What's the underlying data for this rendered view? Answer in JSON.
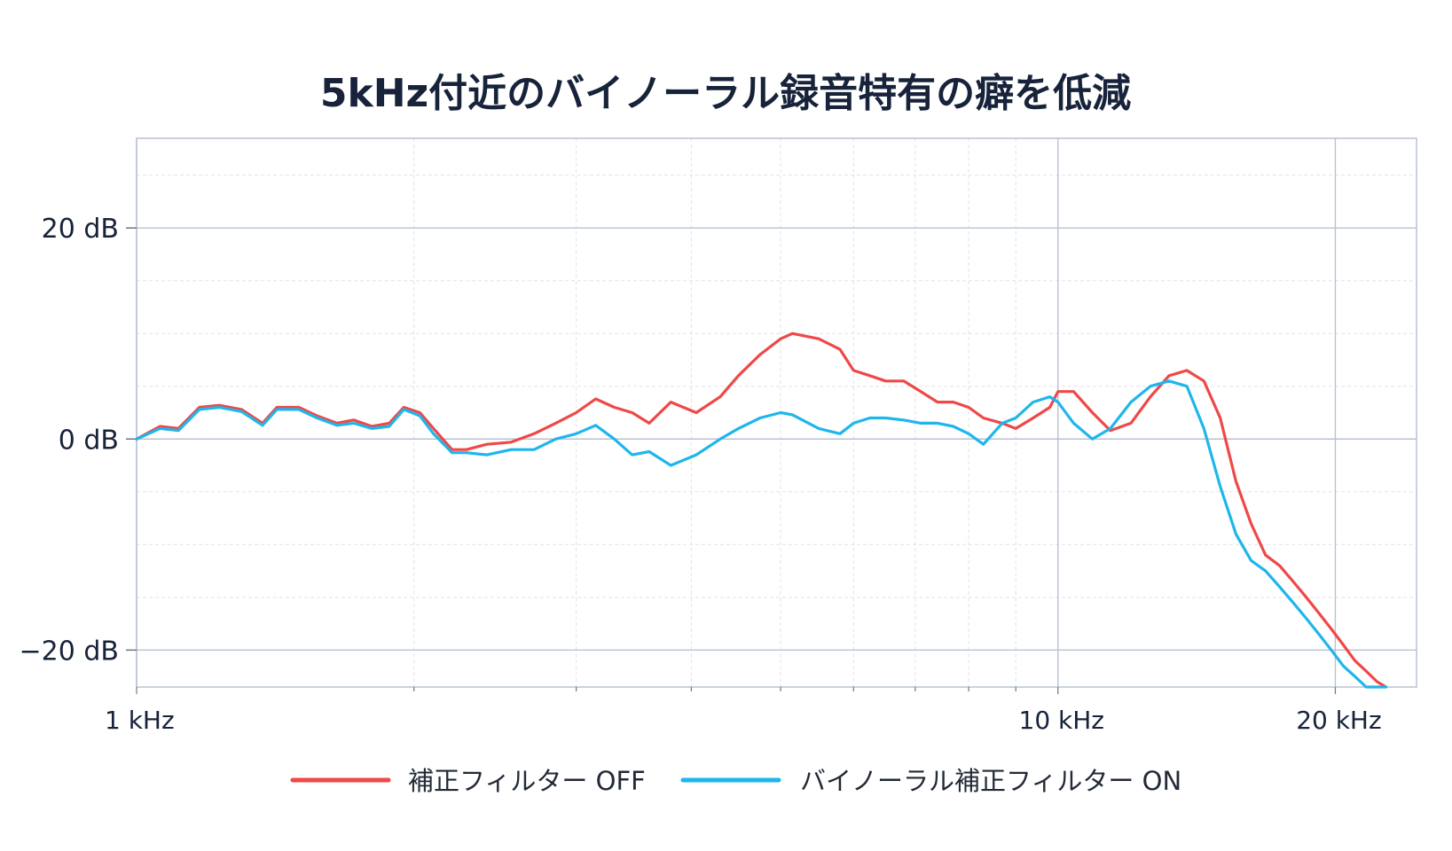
{
  "chart_data": {
    "type": "line",
    "title": "5kHz付近のバイノーラル録音特有の癖を低減",
    "xlabel": "",
    "ylabel": "",
    "x_scale": "log",
    "x_unit": "Hz",
    "xlim": [
      1000,
      24500
    ],
    "ylim": [
      -23.5,
      28.5
    ],
    "x_ticks": [
      {
        "value": 1000,
        "label": "1 kHz"
      },
      {
        "value": 10000,
        "label": "10 kHz"
      },
      {
        "value": 20000,
        "label": "20 kHz"
      }
    ],
    "y_ticks": [
      {
        "value": 20,
        "label": "20 dB"
      },
      {
        "value": 0,
        "label": "0 dB"
      },
      {
        "value": -20,
        "label": "−20 dB"
      }
    ],
    "grid": true,
    "legend_position": "bottom",
    "series": [
      {
        "name": "補正フィルター OFF",
        "color": "#ef4848",
        "x": [
          1000,
          1060,
          1110,
          1170,
          1230,
          1300,
          1370,
          1420,
          1500,
          1570,
          1650,
          1720,
          1800,
          1880,
          1950,
          2030,
          2100,
          2200,
          2280,
          2400,
          2550,
          2700,
          2850,
          3000,
          3150,
          3300,
          3450,
          3600,
          3800,
          4050,
          4300,
          4500,
          4750,
          5000,
          5150,
          5500,
          5800,
          6000,
          6250,
          6500,
          6800,
          7100,
          7400,
          7700,
          8000,
          8300,
          8700,
          9000,
          9400,
          9800,
          10000,
          10400,
          10900,
          11400,
          12000,
          12600,
          13200,
          13800,
          14400,
          15000,
          15600,
          16200,
          16800,
          17400,
          18000,
          18600,
          19200,
          19800,
          20400,
          21000,
          21600,
          22200,
          22700
        ],
        "y": [
          0.0,
          1.2,
          1.0,
          3.0,
          3.2,
          2.8,
          1.5,
          3.0,
          3.0,
          2.2,
          1.5,
          1.8,
          1.2,
          1.5,
          3.0,
          2.5,
          1.0,
          -1.0,
          -1.0,
          -0.5,
          -0.3,
          0.5,
          1.5,
          2.5,
          3.8,
          3.0,
          2.5,
          1.5,
          3.5,
          2.5,
          4.0,
          6.0,
          8.0,
          9.5,
          10.0,
          9.5,
          8.5,
          6.5,
          6.0,
          5.5,
          5.5,
          4.5,
          3.5,
          3.5,
          3.0,
          2.0,
          1.5,
          1.0,
          2.0,
          3.0,
          4.5,
          4.5,
          2.5,
          0.8,
          1.5,
          4.0,
          6.0,
          6.5,
          5.5,
          2.0,
          -4.0,
          -8.0,
          -11.0,
          -12.0,
          -13.5,
          -15.0,
          -16.5,
          -18.0,
          -19.5,
          -21.0,
          -22.0,
          -23.0,
          -23.5
        ]
      },
      {
        "name": "バイノーラル補正フィルター ON",
        "color": "#1fb6ec",
        "x": [
          1000,
          1060,
          1110,
          1170,
          1230,
          1300,
          1370,
          1420,
          1500,
          1570,
          1650,
          1720,
          1800,
          1880,
          1950,
          2030,
          2100,
          2200,
          2280,
          2400,
          2550,
          2700,
          2850,
          3000,
          3150,
          3300,
          3450,
          3600,
          3800,
          4050,
          4300,
          4500,
          4750,
          5000,
          5150,
          5500,
          5800,
          6000,
          6250,
          6500,
          6800,
          7100,
          7400,
          7700,
          8000,
          8300,
          8700,
          9000,
          9400,
          9800,
          10000,
          10400,
          10900,
          11400,
          12000,
          12600,
          13200,
          13800,
          14400,
          15000,
          15600,
          16200,
          16800,
          17400,
          18000,
          18600,
          19200,
          19800,
          20400,
          21000,
          21600,
          22200,
          22700
        ],
        "y": [
          0.0,
          1.0,
          0.8,
          2.8,
          3.0,
          2.6,
          1.3,
          2.8,
          2.8,
          2.0,
          1.3,
          1.5,
          1.0,
          1.2,
          2.8,
          2.2,
          0.5,
          -1.3,
          -1.3,
          -1.5,
          -1.0,
          -1.0,
          0.0,
          0.5,
          1.3,
          0.0,
          -1.5,
          -1.2,
          -2.5,
          -1.5,
          0.0,
          1.0,
          2.0,
          2.5,
          2.3,
          1.0,
          0.5,
          1.5,
          2.0,
          2.0,
          1.8,
          1.5,
          1.5,
          1.2,
          0.5,
          -0.5,
          1.5,
          2.0,
          3.5,
          4.0,
          3.5,
          1.5,
          0.0,
          1.0,
          3.5,
          5.0,
          5.5,
          5.0,
          1.0,
          -4.5,
          -9.0,
          -11.5,
          -12.5,
          -14.0,
          -15.5,
          -17.0,
          -18.5,
          -20.0,
          -21.5,
          -22.5,
          -23.5,
          -23.5,
          -23.5
        ]
      }
    ]
  }
}
